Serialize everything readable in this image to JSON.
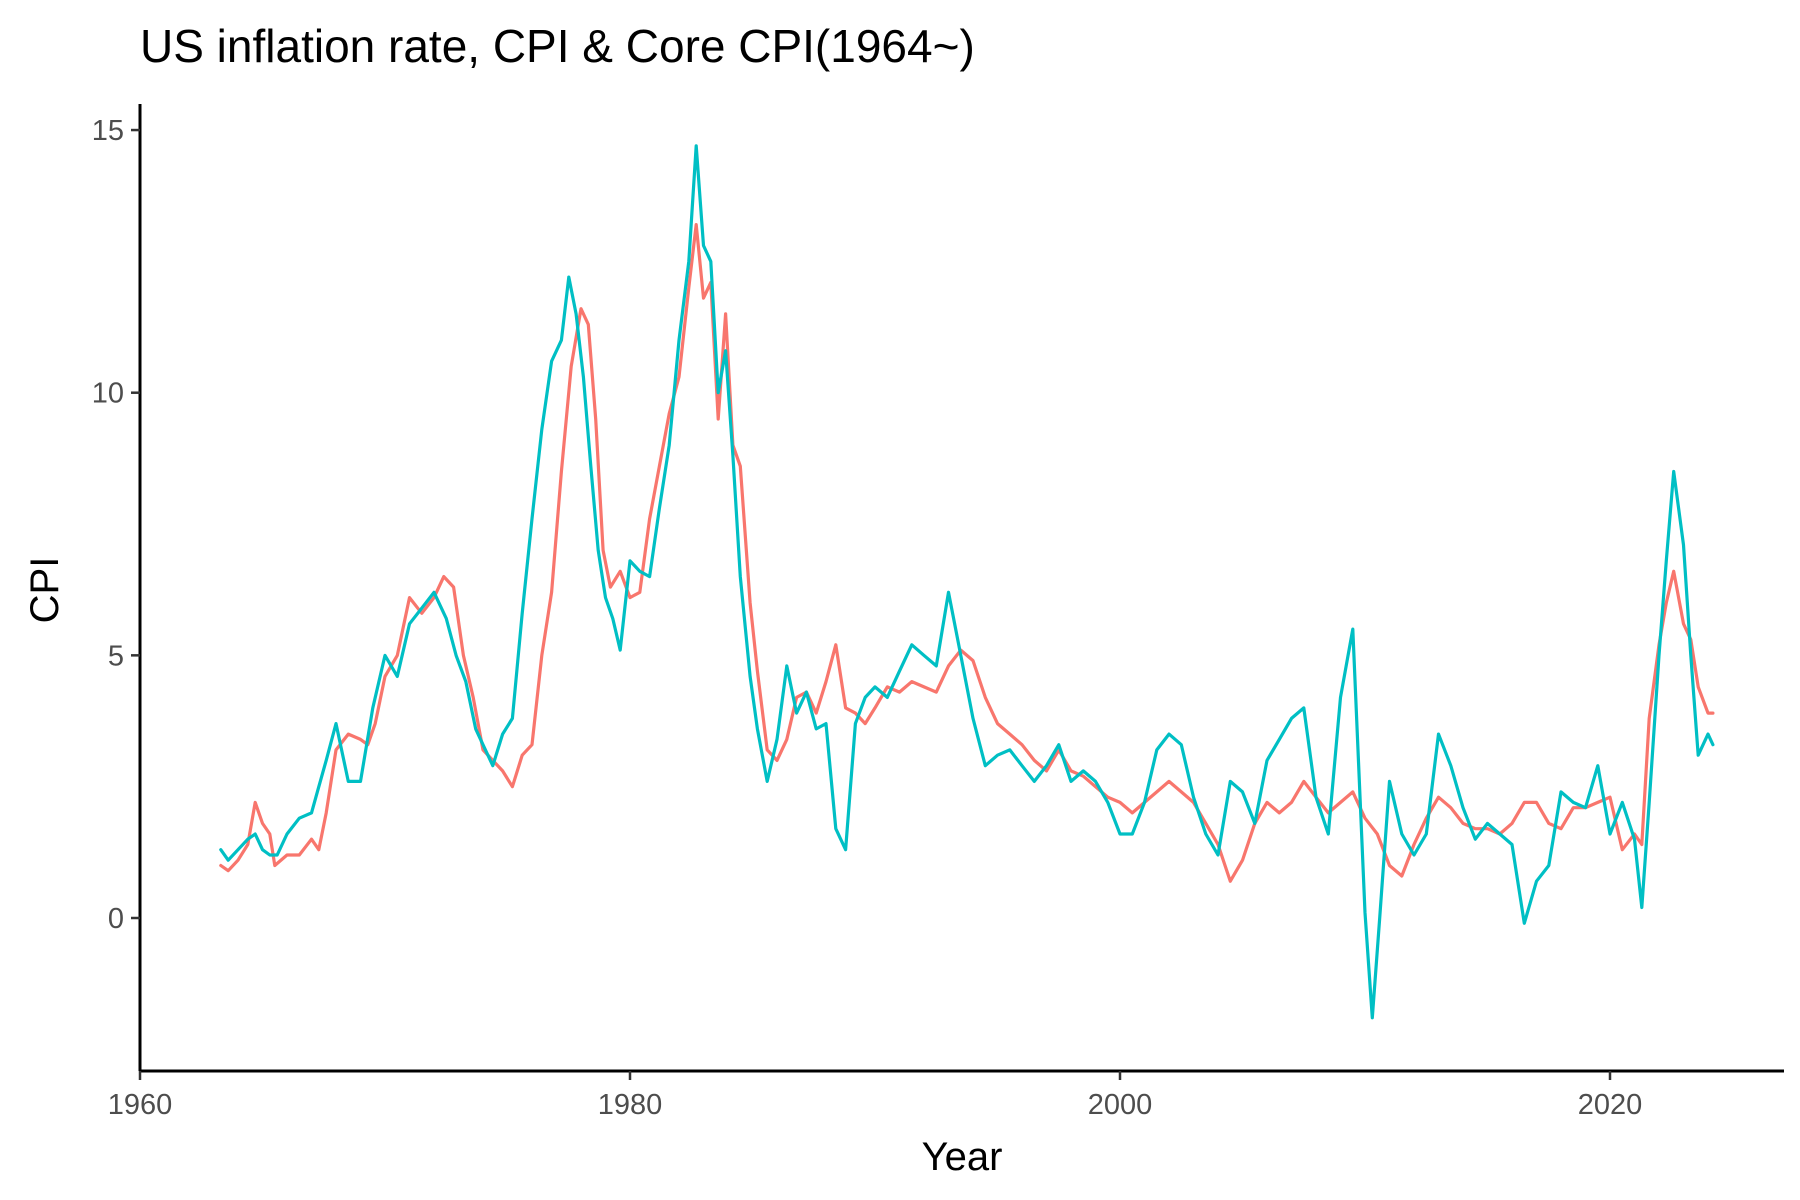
{
  "chart_data": {
    "type": "line",
    "title": "US inflation rate, CPI & Core CPI(1964~)",
    "xlabel": "Year",
    "ylabel": "CPI",
    "xlim": [
      1960,
      2027
    ],
    "ylim": [
      -2.8,
      15.6
    ],
    "x_ticks": [
      1960,
      1980,
      2000,
      2020
    ],
    "y_ticks": [
      0,
      5,
      10,
      15
    ],
    "grid": false,
    "legend": "none",
    "series": [
      {
        "color": "#F8766D",
        "points": [
          [
            1963.3,
            1.0
          ],
          [
            1963.6,
            0.9
          ],
          [
            1964.0,
            1.1
          ],
          [
            1964.4,
            1.4
          ],
          [
            1964.7,
            2.2
          ],
          [
            1965.0,
            1.8
          ],
          [
            1965.3,
            1.6
          ],
          [
            1965.5,
            1.0
          ],
          [
            1966.0,
            1.2
          ],
          [
            1966.5,
            1.2
          ],
          [
            1967.0,
            1.5
          ],
          [
            1967.3,
            1.3
          ],
          [
            1967.6,
            2.0
          ],
          [
            1968.0,
            3.2
          ],
          [
            1968.5,
            3.5
          ],
          [
            1969.0,
            3.4
          ],
          [
            1969.3,
            3.3
          ],
          [
            1969.6,
            3.7
          ],
          [
            1970.0,
            4.6
          ],
          [
            1970.5,
            5.0
          ],
          [
            1971.0,
            6.1
          ],
          [
            1971.5,
            5.8
          ],
          [
            1972.0,
            6.1
          ],
          [
            1972.4,
            6.5
          ],
          [
            1972.8,
            6.3
          ],
          [
            1973.2,
            5.0
          ],
          [
            1973.6,
            4.2
          ],
          [
            1974.0,
            3.2
          ],
          [
            1974.4,
            3.0
          ],
          [
            1974.8,
            2.8
          ],
          [
            1975.2,
            2.5
          ],
          [
            1975.6,
            3.1
          ],
          [
            1976.0,
            3.3
          ],
          [
            1976.4,
            5.0
          ],
          [
            1976.8,
            6.2
          ],
          [
            1977.2,
            8.5
          ],
          [
            1977.6,
            10.5
          ],
          [
            1978.0,
            11.6
          ],
          [
            1978.3,
            11.3
          ],
          [
            1978.6,
            9.5
          ],
          [
            1978.9,
            7.0
          ],
          [
            1979.2,
            6.3
          ],
          [
            1979.6,
            6.6
          ],
          [
            1980.0,
            6.1
          ],
          [
            1980.4,
            6.2
          ],
          [
            1980.8,
            7.6
          ],
          [
            1981.2,
            8.6
          ],
          [
            1981.6,
            9.6
          ],
          [
            1982.0,
            10.3
          ],
          [
            1982.4,
            12.0
          ],
          [
            1982.7,
            13.2
          ],
          [
            1983.0,
            11.8
          ],
          [
            1983.3,
            12.1
          ],
          [
            1983.6,
            9.5
          ],
          [
            1983.9,
            11.5
          ],
          [
            1984.2,
            9.0
          ],
          [
            1984.5,
            8.6
          ],
          [
            1984.9,
            6.0
          ],
          [
            1985.2,
            4.7
          ],
          [
            1985.6,
            3.2
          ],
          [
            1986.0,
            3.0
          ],
          [
            1986.4,
            3.4
          ],
          [
            1986.8,
            4.2
          ],
          [
            1987.2,
            4.3
          ],
          [
            1987.6,
            3.9
          ],
          [
            1988.0,
            4.5
          ],
          [
            1988.4,
            5.2
          ],
          [
            1988.8,
            4.0
          ],
          [
            1989.2,
            3.9
          ],
          [
            1989.6,
            3.7
          ],
          [
            1990.0,
            4.0
          ],
          [
            1990.5,
            4.4
          ],
          [
            1991.0,
            4.3
          ],
          [
            1991.5,
            4.5
          ],
          [
            1992.0,
            4.4
          ],
          [
            1992.5,
            4.3
          ],
          [
            1993.0,
            4.8
          ],
          [
            1993.5,
            5.1
          ],
          [
            1994.0,
            4.9
          ],
          [
            1994.5,
            4.2
          ],
          [
            1995.0,
            3.7
          ],
          [
            1995.5,
            3.5
          ],
          [
            1996.0,
            3.3
          ],
          [
            1996.5,
            3.0
          ],
          [
            1997.0,
            2.8
          ],
          [
            1997.5,
            3.2
          ],
          [
            1998.0,
            2.8
          ],
          [
            1998.5,
            2.7
          ],
          [
            1999.0,
            2.5
          ],
          [
            1999.5,
            2.3
          ],
          [
            2000.0,
            2.2
          ],
          [
            2000.5,
            2.0
          ],
          [
            2001.0,
            2.2
          ],
          [
            2001.5,
            2.4
          ],
          [
            2002.0,
            2.6
          ],
          [
            2002.5,
            2.4
          ],
          [
            2003.0,
            2.2
          ],
          [
            2003.5,
            1.8
          ],
          [
            2004.0,
            1.4
          ],
          [
            2004.5,
            0.7
          ],
          [
            2005.0,
            1.1
          ],
          [
            2005.5,
            1.8
          ],
          [
            2006.0,
            2.2
          ],
          [
            2006.5,
            2.0
          ],
          [
            2007.0,
            2.2
          ],
          [
            2007.5,
            2.6
          ],
          [
            2008.0,
            2.3
          ],
          [
            2008.5,
            2.0
          ],
          [
            2009.0,
            2.2
          ],
          [
            2009.5,
            2.4
          ],
          [
            2010.0,
            1.9
          ],
          [
            2010.5,
            1.6
          ],
          [
            2011.0,
            1.0
          ],
          [
            2011.5,
            0.8
          ],
          [
            2012.0,
            1.4
          ],
          [
            2012.5,
            1.9
          ],
          [
            2013.0,
            2.3
          ],
          [
            2013.5,
            2.1
          ],
          [
            2014.0,
            1.8
          ],
          [
            2014.5,
            1.7
          ],
          [
            2015.0,
            1.7
          ],
          [
            2015.5,
            1.6
          ],
          [
            2016.0,
            1.8
          ],
          [
            2016.5,
            2.2
          ],
          [
            2017.0,
            2.2
          ],
          [
            2017.5,
            1.8
          ],
          [
            2018.0,
            1.7
          ],
          [
            2018.5,
            2.1
          ],
          [
            2019.0,
            2.1
          ],
          [
            2019.5,
            2.2
          ],
          [
            2020.0,
            2.3
          ],
          [
            2020.5,
            1.3
          ],
          [
            2021.0,
            1.6
          ],
          [
            2021.3,
            1.4
          ],
          [
            2021.6,
            3.8
          ],
          [
            2022.0,
            5.2
          ],
          [
            2022.3,
            6.0
          ],
          [
            2022.6,
            6.6
          ],
          [
            2023.0,
            5.6
          ],
          [
            2023.3,
            5.3
          ],
          [
            2023.6,
            4.4
          ],
          [
            2024.0,
            3.9
          ],
          [
            2024.2,
            3.9
          ]
        ]
      },
      {
        "color": "#00BFC4",
        "points": [
          [
            1963.3,
            1.3
          ],
          [
            1963.6,
            1.1
          ],
          [
            1964.0,
            1.3
          ],
          [
            1964.4,
            1.5
          ],
          [
            1964.7,
            1.6
          ],
          [
            1965.0,
            1.3
          ],
          [
            1965.3,
            1.2
          ],
          [
            1965.6,
            1.2
          ],
          [
            1966.0,
            1.6
          ],
          [
            1966.5,
            1.9
          ],
          [
            1967.0,
            2.0
          ],
          [
            1967.3,
            2.5
          ],
          [
            1967.6,
            3.0
          ],
          [
            1968.0,
            3.7
          ],
          [
            1968.5,
            2.6
          ],
          [
            1969.0,
            2.6
          ],
          [
            1969.5,
            4.0
          ],
          [
            1970.0,
            5.0
          ],
          [
            1970.5,
            4.6
          ],
          [
            1971.0,
            5.6
          ],
          [
            1971.5,
            5.9
          ],
          [
            1972.0,
            6.2
          ],
          [
            1972.5,
            5.7
          ],
          [
            1972.9,
            5.0
          ],
          [
            1973.3,
            4.5
          ],
          [
            1973.7,
            3.6
          ],
          [
            1974.0,
            3.3
          ],
          [
            1974.4,
            2.9
          ],
          [
            1974.8,
            3.5
          ],
          [
            1975.2,
            3.8
          ],
          [
            1975.6,
            5.8
          ],
          [
            1976.0,
            7.6
          ],
          [
            1976.4,
            9.3
          ],
          [
            1976.8,
            10.6
          ],
          [
            1977.2,
            11.0
          ],
          [
            1977.5,
            12.2
          ],
          [
            1977.8,
            11.5
          ],
          [
            1978.1,
            10.3
          ],
          [
            1978.4,
            8.6
          ],
          [
            1978.7,
            7.0
          ],
          [
            1979.0,
            6.1
          ],
          [
            1979.3,
            5.7
          ],
          [
            1979.6,
            5.1
          ],
          [
            1980.0,
            6.8
          ],
          [
            1980.4,
            6.6
          ],
          [
            1980.8,
            6.5
          ],
          [
            1981.2,
            7.8
          ],
          [
            1981.6,
            9.0
          ],
          [
            1982.0,
            11.0
          ],
          [
            1982.4,
            12.5
          ],
          [
            1982.7,
            14.7
          ],
          [
            1983.0,
            12.8
          ],
          [
            1983.3,
            12.5
          ],
          [
            1983.6,
            10.0
          ],
          [
            1983.9,
            10.8
          ],
          [
            1984.2,
            8.8
          ],
          [
            1984.5,
            6.5
          ],
          [
            1984.9,
            4.6
          ],
          [
            1985.2,
            3.6
          ],
          [
            1985.6,
            2.6
          ],
          [
            1986.0,
            3.4
          ],
          [
            1986.4,
            4.8
          ],
          [
            1986.8,
            3.9
          ],
          [
            1987.2,
            4.3
          ],
          [
            1987.6,
            3.6
          ],
          [
            1988.0,
            3.7
          ],
          [
            1988.4,
            1.7
          ],
          [
            1988.8,
            1.3
          ],
          [
            1989.2,
            3.7
          ],
          [
            1989.6,
            4.2
          ],
          [
            1990.0,
            4.4
          ],
          [
            1990.5,
            4.2
          ],
          [
            1991.0,
            4.7
          ],
          [
            1991.5,
            5.2
          ],
          [
            1992.0,
            5.0
          ],
          [
            1992.5,
            4.8
          ],
          [
            1993.0,
            6.2
          ],
          [
            1993.5,
            5.0
          ],
          [
            1994.0,
            3.8
          ],
          [
            1994.5,
            2.9
          ],
          [
            1995.0,
            3.1
          ],
          [
            1995.5,
            3.2
          ],
          [
            1996.0,
            2.9
          ],
          [
            1996.5,
            2.6
          ],
          [
            1997.0,
            2.9
          ],
          [
            1997.5,
            3.3
          ],
          [
            1998.0,
            2.6
          ],
          [
            1998.5,
            2.8
          ],
          [
            1999.0,
            2.6
          ],
          [
            1999.5,
            2.2
          ],
          [
            2000.0,
            1.6
          ],
          [
            2000.5,
            1.6
          ],
          [
            2001.0,
            2.2
          ],
          [
            2001.5,
            3.2
          ],
          [
            2002.0,
            3.5
          ],
          [
            2002.5,
            3.3
          ],
          [
            2003.0,
            2.3
          ],
          [
            2003.5,
            1.6
          ],
          [
            2004.0,
            1.2
          ],
          [
            2004.5,
            2.6
          ],
          [
            2005.0,
            2.4
          ],
          [
            2005.5,
            1.8
          ],
          [
            2006.0,
            3.0
          ],
          [
            2006.5,
            3.4
          ],
          [
            2007.0,
            3.8
          ],
          [
            2007.5,
            4.0
          ],
          [
            2008.0,
            2.3
          ],
          [
            2008.5,
            1.6
          ],
          [
            2009.0,
            4.2
          ],
          [
            2009.5,
            5.5
          ],
          [
            2010.0,
            0.1
          ],
          [
            2010.3,
            -1.9
          ],
          [
            2010.6,
            0.0
          ],
          [
            2011.0,
            2.6
          ],
          [
            2011.5,
            1.6
          ],
          [
            2012.0,
            1.2
          ],
          [
            2012.5,
            1.6
          ],
          [
            2013.0,
            3.5
          ],
          [
            2013.5,
            2.9
          ],
          [
            2014.0,
            2.1
          ],
          [
            2014.5,
            1.5
          ],
          [
            2015.0,
            1.8
          ],
          [
            2015.5,
            1.6
          ],
          [
            2016.0,
            1.4
          ],
          [
            2016.5,
            -0.1
          ],
          [
            2017.0,
            0.7
          ],
          [
            2017.5,
            1.0
          ],
          [
            2018.0,
            2.4
          ],
          [
            2018.5,
            2.2
          ],
          [
            2019.0,
            2.1
          ],
          [
            2019.5,
            2.9
          ],
          [
            2020.0,
            1.6
          ],
          [
            2020.5,
            2.2
          ],
          [
            2021.0,
            1.5
          ],
          [
            2021.3,
            0.2
          ],
          [
            2021.6,
            2.2
          ],
          [
            2022.0,
            5.0
          ],
          [
            2022.3,
            6.8
          ],
          [
            2022.6,
            8.5
          ],
          [
            2023.0,
            7.1
          ],
          [
            2023.3,
            5.0
          ],
          [
            2023.6,
            3.1
          ],
          [
            2024.0,
            3.5
          ],
          [
            2024.2,
            3.3
          ]
        ]
      }
    ]
  }
}
